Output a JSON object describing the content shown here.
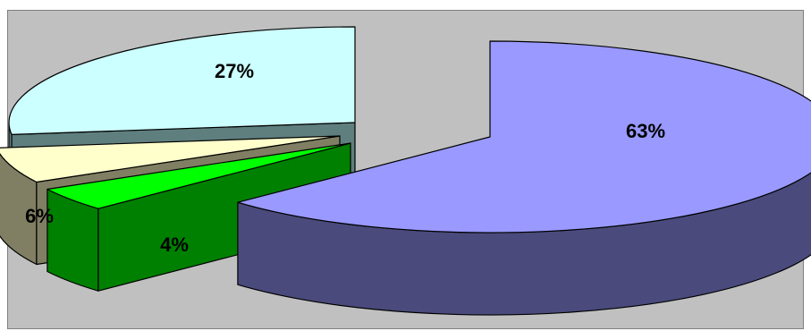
{
  "chart_data": {
    "type": "pie",
    "style": "3d-exploded",
    "title": "",
    "legend": "none",
    "slices": [
      {
        "label": "63%",
        "value": 63,
        "top": "#9999ff",
        "side": "#4a4a7c"
      },
      {
        "label": "4%",
        "value": 4,
        "top": "#00ff00",
        "side": "#008000"
      },
      {
        "label": "6%",
        "value": 6,
        "top": "#ffffcc",
        "side": "#807f63"
      },
      {
        "label": "27%",
        "value": 27,
        "top": "#ccffff",
        "side": "#5f7f7f"
      }
    ]
  }
}
